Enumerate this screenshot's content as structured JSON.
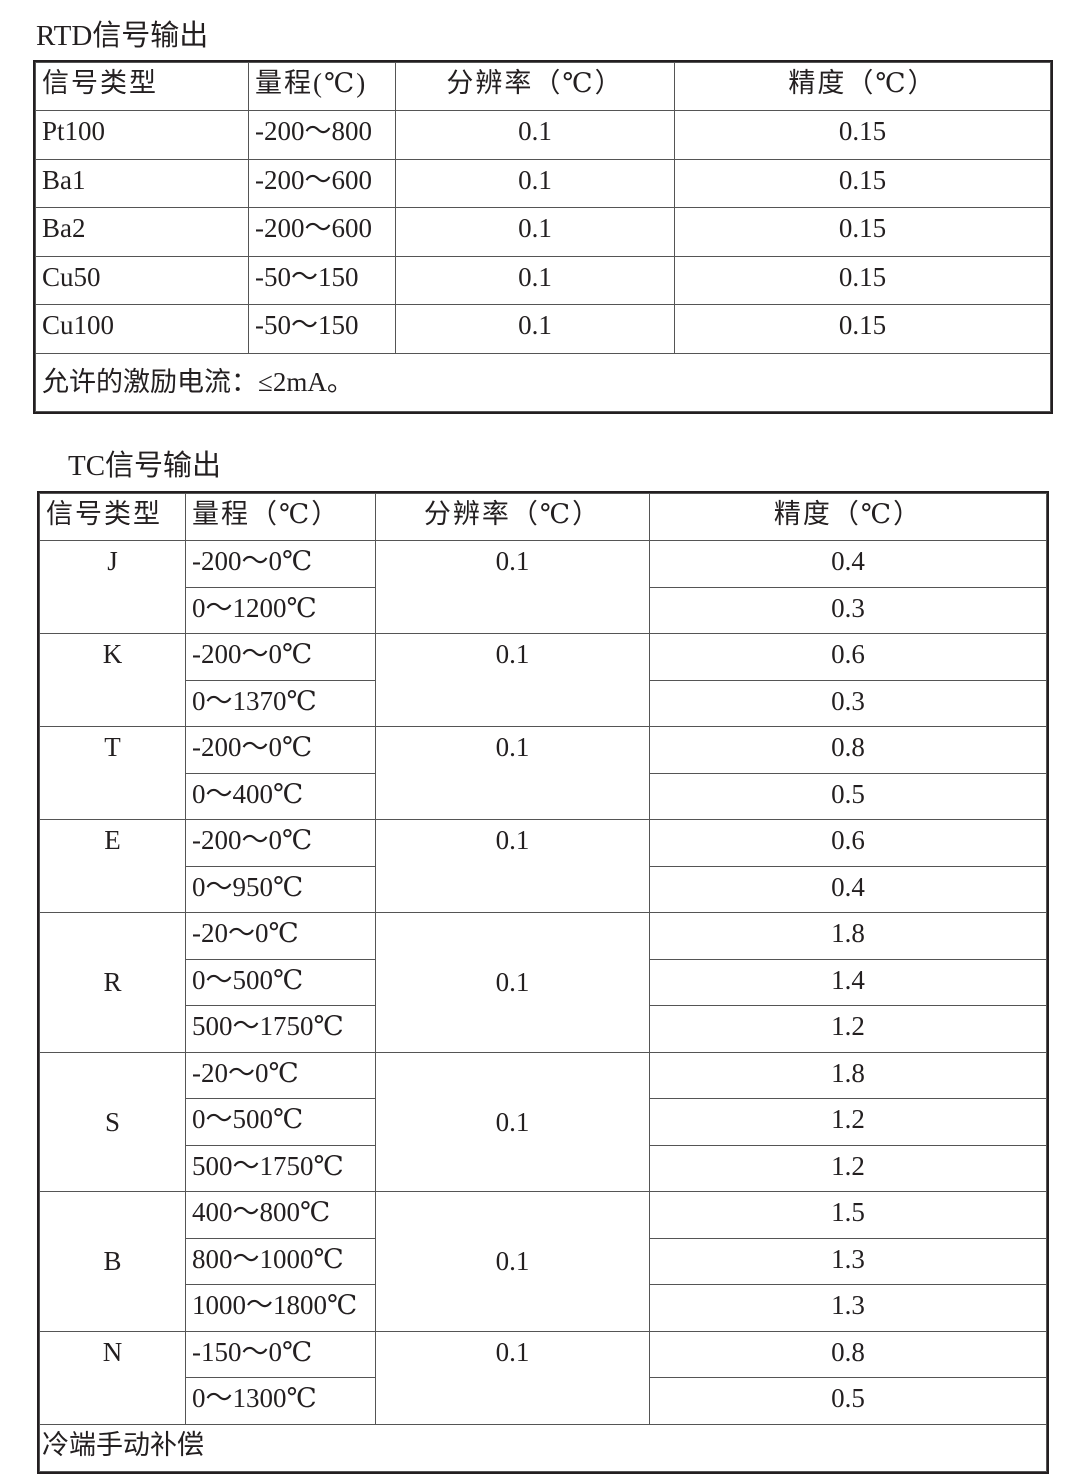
{
  "rtd": {
    "title": "RTD信号输出",
    "headers": [
      "信号类型",
      "量程(℃)",
      "分辨率（℃）",
      "精度（℃）"
    ],
    "rows": [
      {
        "type": "Pt100",
        "range": "-200～800",
        "resolution": "0.1",
        "accuracy": "0.15"
      },
      {
        "type": "Ba1",
        "range": "-200～600",
        "resolution": "0.1",
        "accuracy": "0.15"
      },
      {
        "type": "Ba2",
        "range": "-200～600",
        "resolution": "0.1",
        "accuracy": "0.15"
      },
      {
        "type": "Cu50",
        "range": "-50～150",
        "resolution": "0.1",
        "accuracy": "0.15"
      },
      {
        "type": "Cu100",
        "range": "-50～150",
        "resolution": "0.1",
        "accuracy": "0.15"
      }
    ],
    "footer": "允许的激励电流：≤2mA。"
  },
  "tc": {
    "title": "TC信号输出",
    "headers": [
      "信号类型",
      "量程（℃）",
      "分辨率（℃）",
      "精度（℃）"
    ],
    "groups": [
      {
        "type": "J",
        "resolution": "0.1",
        "rows": [
          {
            "range": "-200～0℃",
            "accuracy": "0.4"
          },
          {
            "range": "0～1200℃",
            "accuracy": "0.3"
          }
        ]
      },
      {
        "type": "K",
        "resolution": "0.1",
        "rows": [
          {
            "range": "-200～0℃",
            "accuracy": "0.6"
          },
          {
            "range": "0～1370℃",
            "accuracy": "0.3"
          }
        ]
      },
      {
        "type": "T",
        "resolution": "0.1",
        "rows": [
          {
            "range": "-200～0℃",
            "accuracy": "0.8"
          },
          {
            "range": "0～400℃",
            "accuracy": "0.5"
          }
        ]
      },
      {
        "type": "E",
        "resolution": "0.1",
        "rows": [
          {
            "range": "-200～0℃",
            "accuracy": "0.6"
          },
          {
            "range": "0～950℃",
            "accuracy": "0.4"
          }
        ]
      },
      {
        "type": "R",
        "resolution": "0.1",
        "rows": [
          {
            "range": "-20～0℃",
            "accuracy": "1.8"
          },
          {
            "range": "0～500℃",
            "accuracy": "1.4"
          },
          {
            "range": "500～1750℃",
            "accuracy": "1.2"
          }
        ]
      },
      {
        "type": "S",
        "resolution": "0.1",
        "rows": [
          {
            "range": "-20～0℃",
            "accuracy": "1.8"
          },
          {
            "range": "0～500℃",
            "accuracy": "1.2"
          },
          {
            "range": "500～1750℃",
            "accuracy": "1.2"
          }
        ]
      },
      {
        "type": "B",
        "resolution": "0.1",
        "rows": [
          {
            "range": "400～800℃",
            "accuracy": "1.5"
          },
          {
            "range": "800～1000℃",
            "accuracy": "1.3"
          },
          {
            "range": "1000～1800℃",
            "accuracy": "1.3"
          }
        ]
      },
      {
        "type": "N",
        "resolution": "0.1",
        "rows": [
          {
            "range": "-150～0℃",
            "accuracy": "0.8"
          },
          {
            "range": "0～1300℃",
            "accuracy": "0.5"
          }
        ]
      }
    ],
    "footer": "冷端手动补偿"
  }
}
